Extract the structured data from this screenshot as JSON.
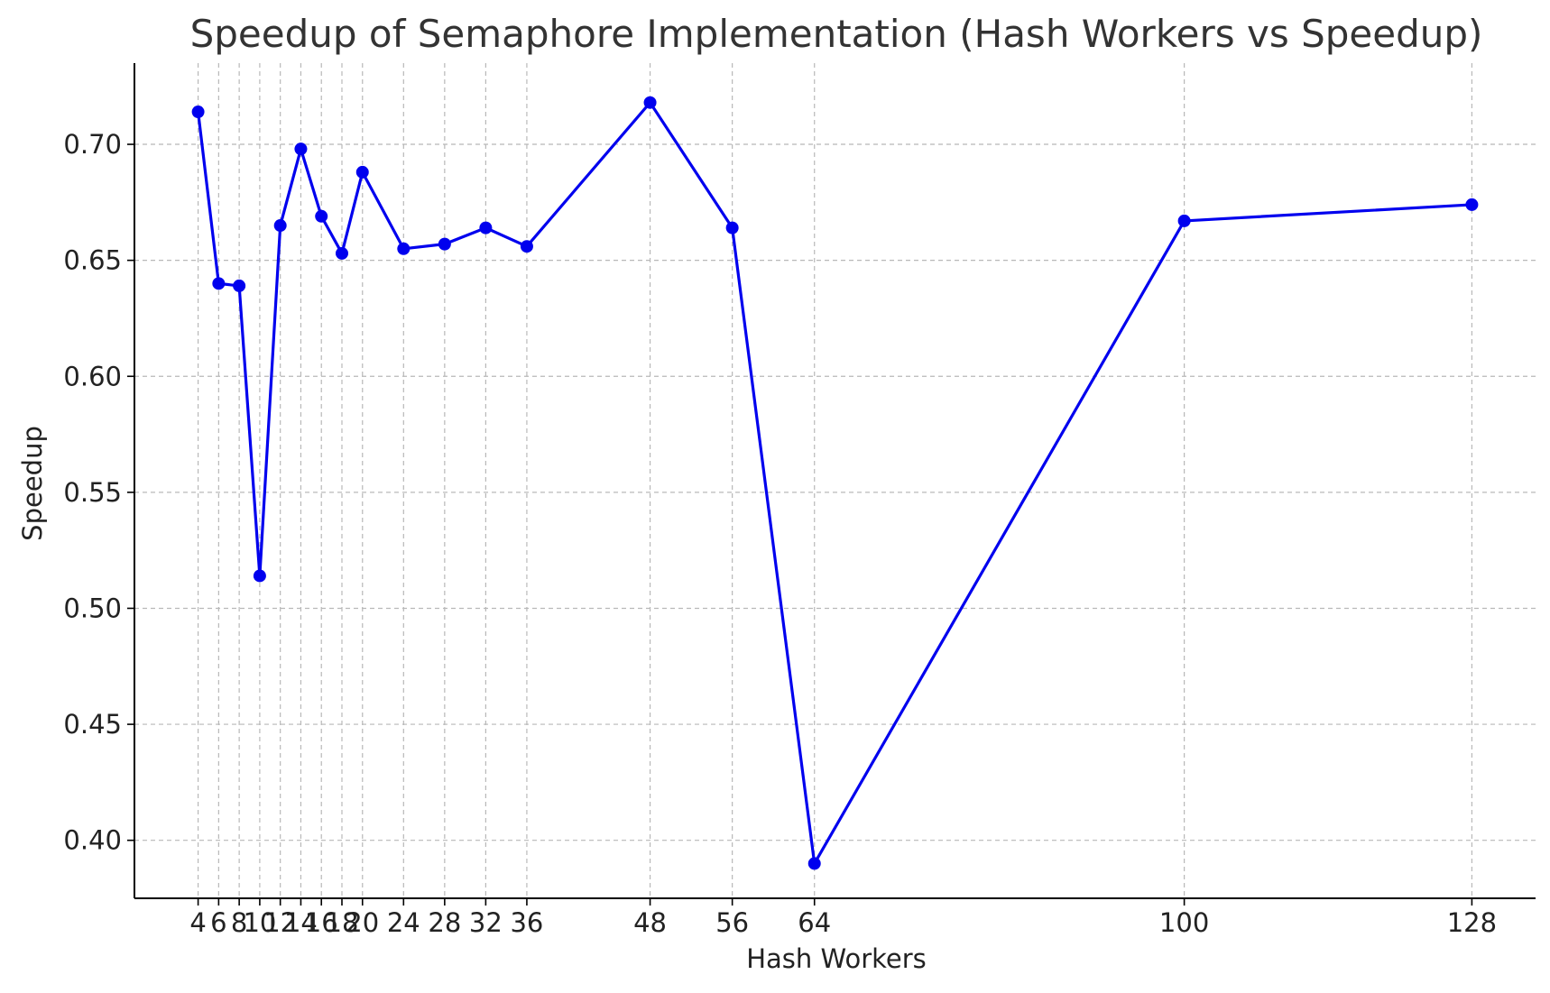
{
  "chart_data": {
    "type": "line",
    "title": "Speedup of Semaphore Implementation (Hash Workers vs Speedup)",
    "xlabel": "Hash Workers",
    "ylabel": "Speedup",
    "x": [
      4,
      6,
      8,
      10,
      12,
      14,
      16,
      18,
      20,
      24,
      28,
      32,
      36,
      48,
      56,
      64,
      100,
      128
    ],
    "y": [
      0.714,
      0.64,
      0.639,
      0.514,
      0.665,
      0.698,
      0.669,
      0.653,
      0.688,
      0.655,
      0.657,
      0.664,
      0.656,
      0.718,
      0.664,
      0.39,
      0.667,
      0.674
    ],
    "x_tick_labels": [
      "4",
      "6",
      "8",
      "10",
      "12",
      "14",
      "16",
      "18",
      "20",
      "24",
      "28",
      "32",
      "36",
      "48",
      "56",
      "64",
      "100",
      "128"
    ],
    "y_ticks": [
      0.4,
      0.45,
      0.5,
      0.55,
      0.6,
      0.65,
      0.7
    ],
    "y_tick_labels": [
      "0.40",
      "0.45",
      "0.50",
      "0.55",
      "0.60",
      "0.65",
      "0.70"
    ],
    "xlim": [
      -2.2,
      134.2
    ],
    "ylim": [
      0.375,
      0.735
    ],
    "grid": true,
    "series_color": "#0000ee",
    "marker": "circle"
  }
}
